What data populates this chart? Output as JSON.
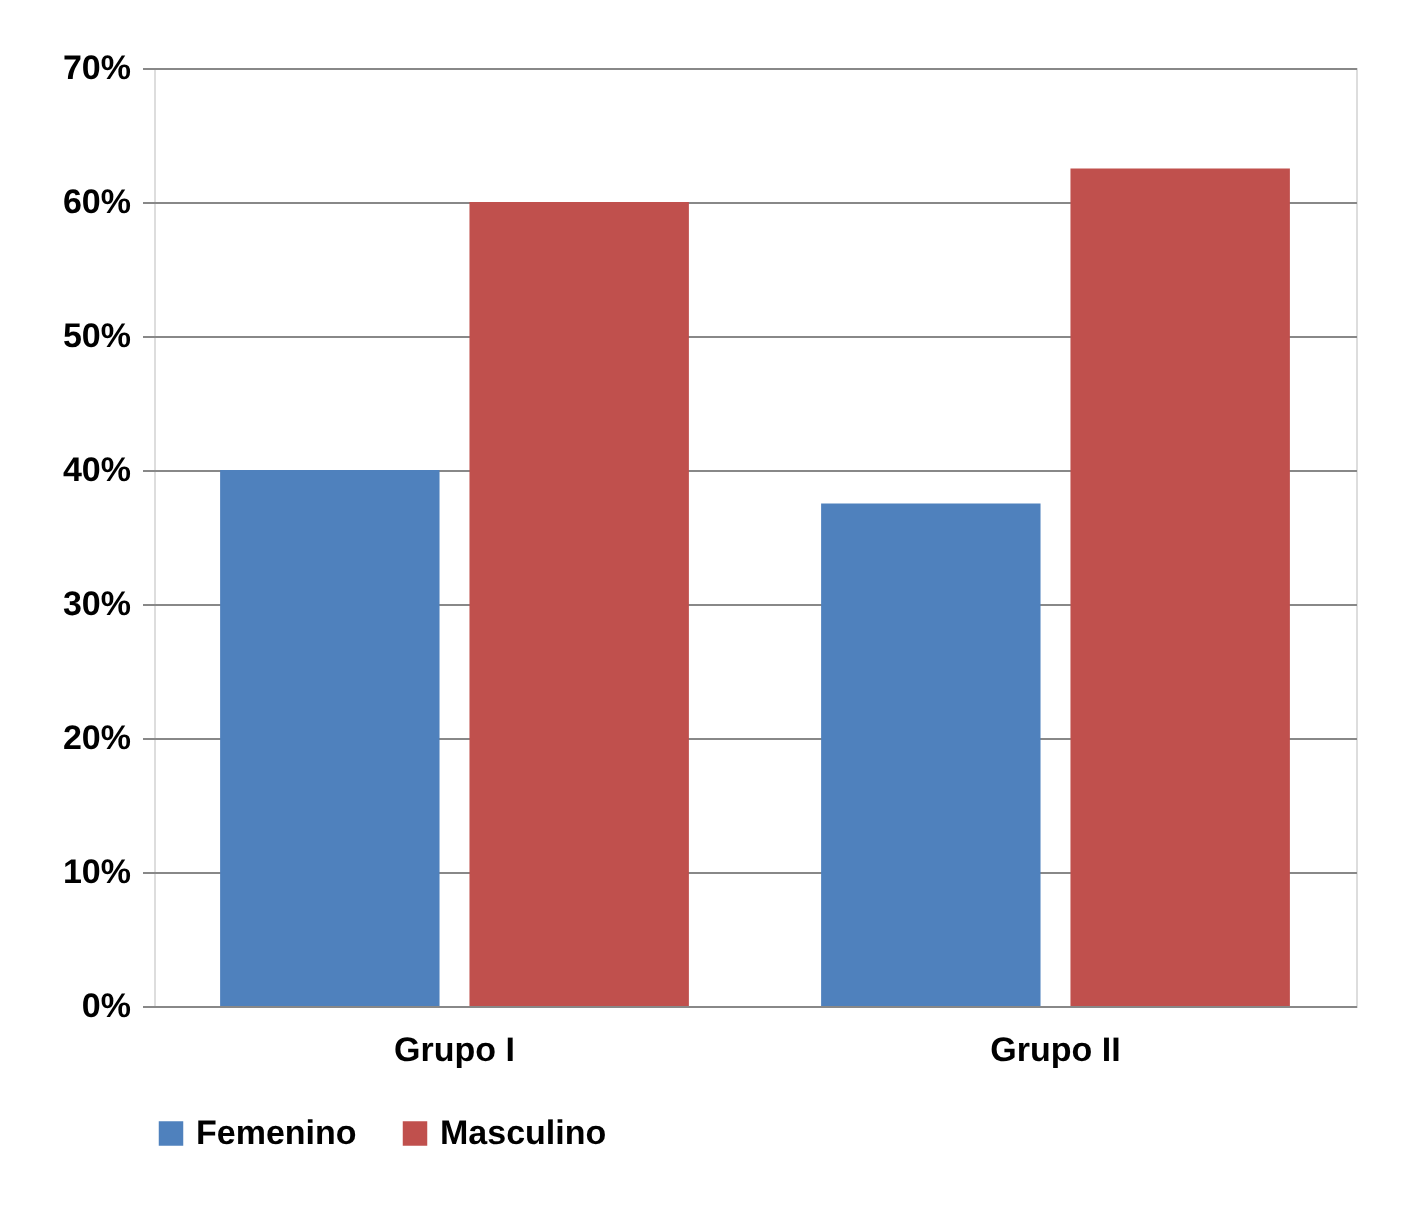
{
  "chart_data": {
    "type": "bar",
    "categories": [
      "Grupo I",
      "Grupo II"
    ],
    "series": [
      {
        "name": "Femenino",
        "color": "#4f81bd",
        "values": [
          40,
          37.5
        ]
      },
      {
        "name": "Masculino",
        "color": "#c0504d",
        "values": [
          60,
          62.5
        ]
      }
    ],
    "ylim": [
      0,
      70
    ],
    "yticks": [
      {
        "value": 0,
        "label": "0%"
      },
      {
        "value": 10,
        "label": "10%"
      },
      {
        "value": 20,
        "label": "20%"
      },
      {
        "value": 30,
        "label": "30%"
      },
      {
        "value": 40,
        "label": "40%"
      },
      {
        "value": 50,
        "label": "50%"
      },
      {
        "value": 60,
        "label": "60%"
      },
      {
        "value": 70,
        "label": "70%"
      }
    ],
    "grid": "y",
    "legend": "bottom"
  }
}
